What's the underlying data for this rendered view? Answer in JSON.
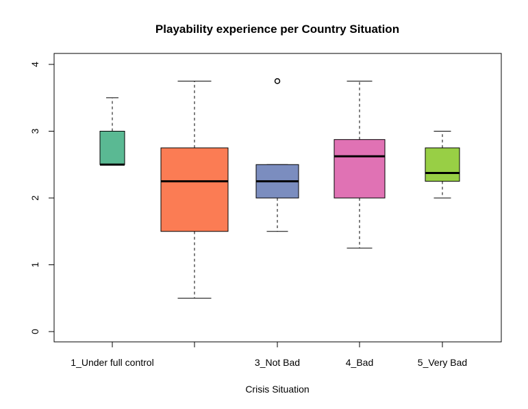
{
  "chart_data": {
    "type": "boxplot",
    "title": "Playability experience per Country Situation",
    "xlabel": "Crisis Situation",
    "ylabel": "",
    "ylim": [
      0,
      4
    ],
    "yticks": [
      0,
      1,
      2,
      3,
      4
    ],
    "categories": [
      "1_Under full control",
      "",
      "3_Not Bad",
      "4_Bad",
      "5_Very Bad"
    ],
    "boxes": [
      {
        "category": "1_Under full control",
        "color": "#5ab993",
        "whisker_low": 2.5,
        "q1": 2.5,
        "median": 2.5,
        "q3": 3.0,
        "whisker_high": 3.5,
        "outliers": []
      },
      {
        "category": "",
        "color": "#fb7c54",
        "whisker_low": 0.5,
        "q1": 1.5,
        "median": 2.25,
        "q3": 2.75,
        "whisker_high": 3.75,
        "outliers": []
      },
      {
        "category": "3_Not Bad",
        "color": "#7b8dbf",
        "whisker_low": 1.5,
        "q1": 2.0,
        "median": 2.25,
        "q3": 2.5,
        "whisker_high": 2.5,
        "outliers": [
          3.75
        ]
      },
      {
        "category": "4_Bad",
        "color": "#e072b4",
        "whisker_low": 1.25,
        "q1": 2.0,
        "median": 2.625,
        "q3": 2.875,
        "whisker_high": 3.75,
        "outliers": []
      },
      {
        "category": "5_Very Bad",
        "color": "#98cf45",
        "whisker_low": 2.0,
        "q1": 2.25,
        "median": 2.375,
        "q3": 2.75,
        "whisker_high": 3.0,
        "outliers": []
      }
    ]
  }
}
